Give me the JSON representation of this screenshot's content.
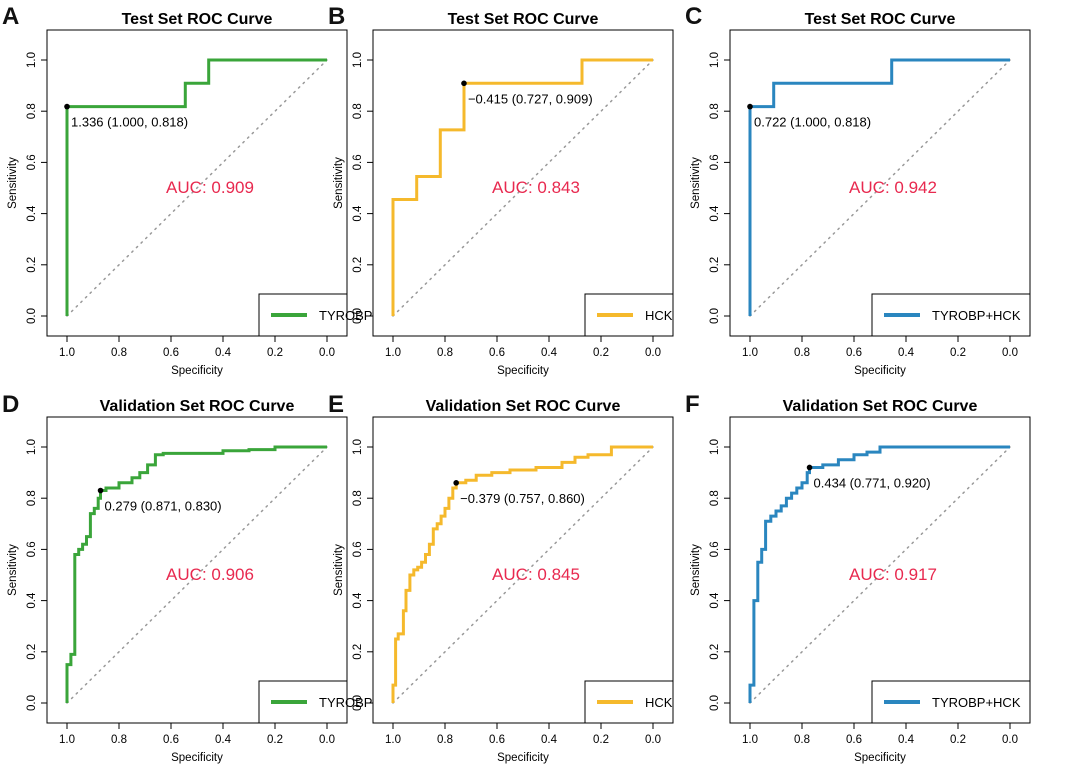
{
  "figure": {
    "rows": 2,
    "cols": 3
  },
  "chart_data": [
    {
      "panel": "A",
      "type": "line",
      "title": "Test Set ROC Curve",
      "xlabel": "Specificity",
      "ylabel": "Sensitivity",
      "xlim": [
        1.0,
        0.0
      ],
      "ylim": [
        0.0,
        1.0
      ],
      "xticks": [
        "1.0",
        "0.8",
        "0.6",
        "0.4",
        "0.2",
        "0.0"
      ],
      "yticks": [
        "0.0",
        "0.2",
        "0.4",
        "0.6",
        "0.8",
        "1.0"
      ],
      "color": "#3aa53a",
      "legend": "TYROBP",
      "legend_position": "bottom-right",
      "auc_label": "AUC: 0.909",
      "auc_color": "#e8294f",
      "auc_x": 0.45,
      "auc_y": 0.48,
      "diagonal": true,
      "threshold": {
        "spec": 1.0,
        "sens": 0.818,
        "label": "1.336 (1.000, 0.818)"
      },
      "series": [
        {
          "name": "TYROBP",
          "spec": [
            1.0,
            1.0,
            1.0,
            0.545,
            0.545,
            0.455,
            0.455,
            0.0
          ],
          "sens": [
            0.0,
            0.818,
            0.818,
            0.818,
            0.909,
            0.909,
            1.0,
            1.0
          ]
        }
      ]
    },
    {
      "panel": "B",
      "type": "line",
      "title": "Test Set ROC Curve",
      "xlabel": "Specificity",
      "ylabel": "Sensitivity",
      "xlim": [
        1.0,
        0.0
      ],
      "ylim": [
        0.0,
        1.0
      ],
      "xticks": [
        "1.0",
        "0.8",
        "0.6",
        "0.4",
        "0.2",
        "0.0"
      ],
      "yticks": [
        "0.0",
        "0.2",
        "0.4",
        "0.6",
        "0.8",
        "1.0"
      ],
      "color": "#f5b92c",
      "legend": "HCK",
      "legend_position": "bottom-right",
      "auc_label": "AUC: 0.843",
      "auc_color": "#e8294f",
      "auc_x": 0.45,
      "auc_y": 0.48,
      "diagonal": true,
      "threshold": {
        "spec": 0.727,
        "sens": 0.909,
        "label": "−0.415 (0.727, 0.909)"
      },
      "series": [
        {
          "name": "HCK",
          "spec": [
            1.0,
            1.0,
            0.909,
            0.909,
            0.818,
            0.818,
            0.727,
            0.727,
            0.273,
            0.273,
            0.0
          ],
          "sens": [
            0.0,
            0.455,
            0.455,
            0.545,
            0.545,
            0.727,
            0.727,
            0.909,
            0.909,
            1.0,
            1.0
          ]
        }
      ]
    },
    {
      "panel": "C",
      "type": "line",
      "title": "Test Set ROC Curve",
      "xlabel": "Specificity",
      "ylabel": "Sensitivity",
      "xlim": [
        1.0,
        0.0
      ],
      "ylim": [
        0.0,
        1.0
      ],
      "xticks": [
        "1.0",
        "0.8",
        "0.6",
        "0.4",
        "0.2",
        "0.0"
      ],
      "yticks": [
        "0.0",
        "0.2",
        "0.4",
        "0.6",
        "0.8",
        "1.0"
      ],
      "color": "#2a86bf",
      "legend": "TYROBP+HCK",
      "legend_position": "bottom-right",
      "auc_label": "AUC: 0.942",
      "auc_color": "#e8294f",
      "auc_x": 0.45,
      "auc_y": 0.48,
      "diagonal": true,
      "threshold": {
        "spec": 1.0,
        "sens": 0.818,
        "label": "0.722 (1.000, 0.818)"
      },
      "series": [
        {
          "name": "TYROBP+HCK",
          "spec": [
            1.0,
            1.0,
            0.909,
            0.909,
            0.455,
            0.455,
            0.0
          ],
          "sens": [
            0.0,
            0.818,
            0.818,
            0.909,
            0.909,
            1.0,
            1.0
          ]
        }
      ]
    },
    {
      "panel": "D",
      "type": "line",
      "title": "Validation Set ROC Curve",
      "xlabel": "Specificity",
      "ylabel": "Sensitivity",
      "xlim": [
        1.0,
        0.0
      ],
      "ylim": [
        0.0,
        1.0
      ],
      "xticks": [
        "1.0",
        "0.8",
        "0.6",
        "0.4",
        "0.2",
        "0.0"
      ],
      "yticks": [
        "0.0",
        "0.2",
        "0.4",
        "0.6",
        "0.8",
        "1.0"
      ],
      "color": "#3aa53a",
      "legend": "TYROBP",
      "legend_position": "bottom-right",
      "auc_label": "AUC: 0.906",
      "auc_color": "#e8294f",
      "auc_x": 0.45,
      "auc_y": 0.48,
      "diagonal": true,
      "threshold": {
        "spec": 0.871,
        "sens": 0.83,
        "label": "0.279 (0.871, 0.830)"
      },
      "series": [
        {
          "name": "TYROBP",
          "spec": [
            1.0,
            1.0,
            0.985,
            0.985,
            0.97,
            0.97,
            0.955,
            0.955,
            0.94,
            0.94,
            0.925,
            0.925,
            0.91,
            0.91,
            0.895,
            0.895,
            0.88,
            0.88,
            0.871,
            0.871,
            0.85,
            0.85,
            0.8,
            0.8,
            0.75,
            0.75,
            0.72,
            0.72,
            0.69,
            0.69,
            0.66,
            0.66,
            0.63,
            0.63,
            0.4,
            0.4,
            0.3,
            0.3,
            0.2,
            0.2,
            0.0
          ],
          "sens": [
            0.0,
            0.15,
            0.15,
            0.19,
            0.19,
            0.58,
            0.58,
            0.6,
            0.6,
            0.62,
            0.62,
            0.65,
            0.65,
            0.74,
            0.74,
            0.76,
            0.76,
            0.8,
            0.8,
            0.83,
            0.83,
            0.84,
            0.84,
            0.86,
            0.86,
            0.88,
            0.88,
            0.9,
            0.9,
            0.93,
            0.93,
            0.97,
            0.97,
            0.975,
            0.975,
            0.985,
            0.985,
            0.99,
            0.99,
            1.0,
            1.0
          ]
        }
      ]
    },
    {
      "panel": "E",
      "type": "line",
      "title": "Validation Set ROC Curve",
      "xlabel": "Specificity",
      "ylabel": "Sensitivity",
      "xlim": [
        1.0,
        0.0
      ],
      "ylim": [
        0.0,
        1.0
      ],
      "xticks": [
        "1.0",
        "0.8",
        "0.6",
        "0.4",
        "0.2",
        "0.0"
      ],
      "yticks": [
        "0.0",
        "0.2",
        "0.4",
        "0.6",
        "0.8",
        "1.0"
      ],
      "color": "#f5b92c",
      "legend": "HCK",
      "legend_position": "bottom-right",
      "auc_label": "AUC: 0.845",
      "auc_color": "#e8294f",
      "auc_x": 0.45,
      "auc_y": 0.48,
      "diagonal": true,
      "threshold": {
        "spec": 0.757,
        "sens": 0.86,
        "label": "−0.379 (0.757, 0.860)"
      },
      "series": [
        {
          "name": "HCK",
          "spec": [
            1.0,
            1.0,
            0.99,
            0.99,
            0.98,
            0.98,
            0.96,
            0.96,
            0.95,
            0.95,
            0.935,
            0.935,
            0.92,
            0.92,
            0.905,
            0.905,
            0.89,
            0.89,
            0.875,
            0.875,
            0.86,
            0.86,
            0.845,
            0.845,
            0.83,
            0.83,
            0.815,
            0.815,
            0.8,
            0.8,
            0.785,
            0.785,
            0.77,
            0.77,
            0.757,
            0.757,
            0.72,
            0.72,
            0.68,
            0.68,
            0.62,
            0.62,
            0.55,
            0.55,
            0.45,
            0.45,
            0.35,
            0.35,
            0.3,
            0.3,
            0.25,
            0.25,
            0.16,
            0.16,
            0.0
          ],
          "sens": [
            0.0,
            0.07,
            0.07,
            0.25,
            0.25,
            0.27,
            0.27,
            0.36,
            0.36,
            0.44,
            0.44,
            0.5,
            0.5,
            0.52,
            0.52,
            0.53,
            0.53,
            0.55,
            0.55,
            0.58,
            0.58,
            0.62,
            0.62,
            0.68,
            0.68,
            0.7,
            0.7,
            0.73,
            0.73,
            0.76,
            0.76,
            0.8,
            0.8,
            0.84,
            0.84,
            0.86,
            0.86,
            0.87,
            0.87,
            0.89,
            0.89,
            0.9,
            0.9,
            0.91,
            0.91,
            0.92,
            0.92,
            0.94,
            0.94,
            0.96,
            0.96,
            0.97,
            0.97,
            1.0,
            1.0
          ]
        }
      ]
    },
    {
      "panel": "F",
      "type": "line",
      "title": "Validation Set ROC Curve",
      "xlabel": "Specificity",
      "ylabel": "Sensitivity",
      "xlim": [
        1.0,
        0.0
      ],
      "ylim": [
        0.0,
        1.0
      ],
      "xticks": [
        "1.0",
        "0.8",
        "0.6",
        "0.4",
        "0.2",
        "0.0"
      ],
      "yticks": [
        "0.0",
        "0.2",
        "0.4",
        "0.6",
        "0.8",
        "1.0"
      ],
      "color": "#2a86bf",
      "legend": "TYROBP+HCK",
      "legend_position": "bottom-right",
      "auc_label": "AUC: 0.917",
      "auc_color": "#e8294f",
      "auc_x": 0.45,
      "auc_y": 0.48,
      "diagonal": true,
      "threshold": {
        "spec": 0.771,
        "sens": 0.92,
        "label": "0.434 (0.771, 0.920)"
      },
      "series": [
        {
          "name": "TYROBP+HCK",
          "spec": [
            1.0,
            1.0,
            0.985,
            0.985,
            0.97,
            0.97,
            0.955,
            0.955,
            0.94,
            0.94,
            0.92,
            0.92,
            0.9,
            0.9,
            0.88,
            0.88,
            0.86,
            0.86,
            0.84,
            0.84,
            0.82,
            0.82,
            0.8,
            0.8,
            0.78,
            0.78,
            0.771,
            0.771,
            0.72,
            0.72,
            0.66,
            0.66,
            0.6,
            0.6,
            0.55,
            0.55,
            0.5,
            0.5,
            0.0
          ],
          "sens": [
            0.0,
            0.07,
            0.07,
            0.4,
            0.4,
            0.55,
            0.55,
            0.6,
            0.6,
            0.71,
            0.71,
            0.73,
            0.73,
            0.75,
            0.75,
            0.77,
            0.77,
            0.8,
            0.8,
            0.82,
            0.82,
            0.84,
            0.84,
            0.86,
            0.86,
            0.9,
            0.9,
            0.92,
            0.92,
            0.93,
            0.93,
            0.95,
            0.95,
            0.97,
            0.97,
            0.98,
            0.98,
            1.0,
            1.0
          ]
        }
      ]
    }
  ]
}
